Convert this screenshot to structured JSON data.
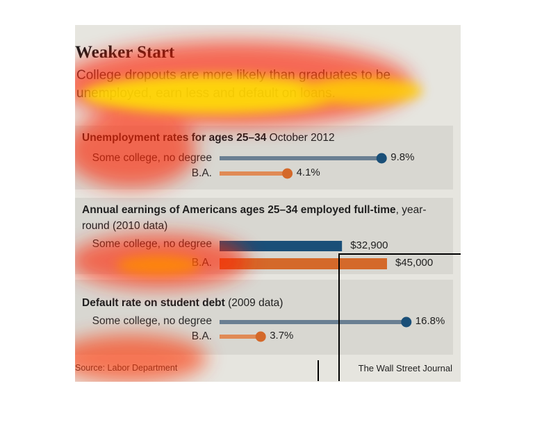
{
  "title": "Weaker Start",
  "subtitle": "College dropouts are more likely than graduates to be unemployed, earn less and default on loans.",
  "colors": {
    "dropout": "#1a4f78",
    "ba": "#d4692a",
    "panel": "#d8d7d1",
    "card": "#e6e5df"
  },
  "panels": [
    {
      "title_bold": "Unemployment rates for ages 25–34",
      "title_rest": " October 2012"
    },
    {
      "title_bold": "Annual earnings of Americans ages 25–34 employed full-time",
      "title_rest": ", year-round (2010 data)"
    },
    {
      "title_bold": "Default rate on student debt",
      "title_rest": " (2009 data)"
    }
  ],
  "chart_data": [
    {
      "type": "lollipop",
      "title": "Unemployment rates for ages 25–34 October 2012",
      "categories": [
        "Some college, no degree",
        "B.A."
      ],
      "values": [
        9.8,
        4.1
      ],
      "labels": [
        "9.8%",
        "4.1%"
      ]
    },
    {
      "type": "bar",
      "title": "Annual earnings of Americans ages 25–34 employed full-time, year-round (2010 data)",
      "categories": [
        "Some college, no degree",
        "B.A."
      ],
      "values": [
        32900,
        45000
      ],
      "labels": [
        "$32,900",
        "$45,000"
      ]
    },
    {
      "type": "lollipop",
      "title": "Default rate on student debt (2009 data)",
      "categories": [
        "Some college, no degree",
        "B.A."
      ],
      "values": [
        16.8,
        3.7
      ],
      "labels": [
        "16.8%",
        "3.7%"
      ]
    }
  ],
  "footer": {
    "source": "Source: Labor Department",
    "credit": "The Wall Street Journal"
  }
}
